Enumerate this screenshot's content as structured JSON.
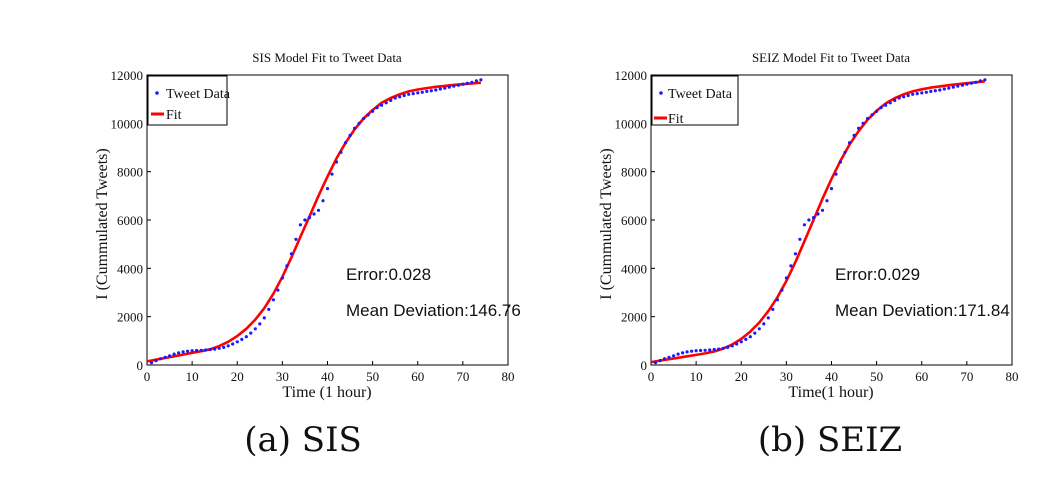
{
  "chart_data": [
    {
      "type": "scatter",
      "title": "SIS Model Fit to Tweet Data",
      "caption": "(a) SIS",
      "xlabel": "Time (1 hour)",
      "ylabel": "I (Cummulated Tweets)",
      "xlim": [
        0,
        80
      ],
      "ylim": [
        0,
        12000
      ],
      "xticks": [
        0,
        10,
        20,
        30,
        40,
        50,
        60,
        70,
        80
      ],
      "yticks": [
        0,
        2000,
        4000,
        6000,
        8000,
        10000,
        12000
      ],
      "grid": false,
      "legend": {
        "position": "top-left",
        "entries": [
          "Tweet Data",
          "Fit"
        ]
      },
      "annotations": [
        "Error:0.028",
        "Mean Deviation:146.76"
      ],
      "colors": {
        "data": "#1a1aff",
        "fit": "#ff0000"
      },
      "series": [
        {
          "name": "Tweet Data",
          "style": "points",
          "x": [
            1,
            2,
            3,
            4,
            5,
            6,
            7,
            8,
            9,
            10,
            11,
            12,
            13,
            14,
            15,
            16,
            17,
            18,
            19,
            20,
            21,
            22,
            23,
            24,
            25,
            26,
            27,
            28,
            29,
            30,
            31,
            32,
            33,
            34,
            35,
            36,
            37,
            38,
            39,
            40,
            41,
            42,
            43,
            44,
            45,
            46,
            47,
            48,
            49,
            50,
            51,
            52,
            53,
            54,
            55,
            56,
            57,
            58,
            59,
            60,
            61,
            62,
            63,
            64,
            65,
            66,
            67,
            68,
            69,
            70,
            71,
            72,
            73,
            74
          ],
          "y": [
            100,
            180,
            260,
            320,
            380,
            450,
            500,
            540,
            570,
            590,
            600,
            610,
            620,
            640,
            660,
            690,
            730,
            790,
            870,
            960,
            1060,
            1170,
            1320,
            1500,
            1700,
            1950,
            2300,
            2700,
            3100,
            3600,
            4100,
            4600,
            5200,
            5800,
            6000,
            6100,
            6250,
            6400,
            6800,
            7300,
            7900,
            8400,
            8800,
            9200,
            9500,
            9800,
            10000,
            10200,
            10350,
            10500,
            10650,
            10750,
            10850,
            10950,
            11050,
            11100,
            11150,
            11200,
            11230,
            11260,
            11290,
            11320,
            11350,
            11380,
            11420,
            11460,
            11500,
            11540,
            11580,
            11620,
            11660,
            11700,
            11760,
            11800
          ]
        },
        {
          "name": "Fit",
          "style": "line",
          "x": [
            0,
            2,
            4,
            6,
            8,
            10,
            12,
            14,
            16,
            18,
            20,
            22,
            24,
            26,
            28,
            30,
            32,
            34,
            36,
            38,
            40,
            42,
            44,
            46,
            48,
            50,
            52,
            54,
            56,
            58,
            60,
            62,
            64,
            66,
            68,
            70,
            72,
            74
          ],
          "y": [
            150,
            220,
            290,
            360,
            430,
            500,
            570,
            650,
            780,
            960,
            1200,
            1500,
            1880,
            2350,
            2950,
            3650,
            4450,
            5300,
            6150,
            7000,
            7800,
            8550,
            9200,
            9750,
            10200,
            10550,
            10850,
            11050,
            11200,
            11320,
            11400,
            11460,
            11510,
            11550,
            11590,
            11620,
            11650,
            11680
          ]
        }
      ]
    },
    {
      "type": "scatter",
      "title": "SEIZ Model Fit to Tweet Data",
      "caption": "(b) SEIZ",
      "xlabel": "Time(1 hour)",
      "ylabel": "I (Cummulated Tweets)",
      "xlim": [
        0,
        80
      ],
      "ylim": [
        0,
        12000
      ],
      "xticks": [
        0,
        10,
        20,
        30,
        40,
        50,
        60,
        70,
        80
      ],
      "yticks": [
        0,
        2000,
        4000,
        6000,
        8000,
        10000,
        12000
      ],
      "grid": false,
      "legend": {
        "position": "top-left",
        "entries": [
          "Tweet Data",
          "Fit"
        ]
      },
      "annotations": [
        "Error:0.029",
        "Mean Deviation:171.84"
      ],
      "colors": {
        "data": "#1a1aff",
        "fit": "#ff0000"
      },
      "series": [
        {
          "name": "Tweet Data",
          "style": "points",
          "x": [
            1,
            2,
            3,
            4,
            5,
            6,
            7,
            8,
            9,
            10,
            11,
            12,
            13,
            14,
            15,
            16,
            17,
            18,
            19,
            20,
            21,
            22,
            23,
            24,
            25,
            26,
            27,
            28,
            29,
            30,
            31,
            32,
            33,
            34,
            35,
            36,
            37,
            38,
            39,
            40,
            41,
            42,
            43,
            44,
            45,
            46,
            47,
            48,
            49,
            50,
            51,
            52,
            53,
            54,
            55,
            56,
            57,
            58,
            59,
            60,
            61,
            62,
            63,
            64,
            65,
            66,
            67,
            68,
            69,
            70,
            71,
            72,
            73,
            74
          ],
          "y": [
            100,
            180,
            260,
            320,
            380,
            450,
            500,
            540,
            570,
            590,
            600,
            610,
            620,
            640,
            660,
            690,
            730,
            790,
            870,
            960,
            1060,
            1170,
            1320,
            1500,
            1700,
            1950,
            2300,
            2700,
            3100,
            3600,
            4100,
            4600,
            5200,
            5800,
            6000,
            6100,
            6250,
            6400,
            6800,
            7300,
            7900,
            8400,
            8800,
            9200,
            9500,
            9800,
            10000,
            10200,
            10350,
            10500,
            10650,
            10750,
            10850,
            10950,
            11050,
            11100,
            11150,
            11200,
            11230,
            11260,
            11290,
            11320,
            11350,
            11380,
            11420,
            11460,
            11500,
            11540,
            11580,
            11620,
            11660,
            11700,
            11760,
            11800
          ]
        },
        {
          "name": "Fit",
          "style": "line",
          "x": [
            0,
            2,
            4,
            6,
            8,
            10,
            12,
            14,
            16,
            18,
            20,
            22,
            24,
            26,
            28,
            30,
            32,
            34,
            36,
            38,
            40,
            42,
            44,
            46,
            48,
            50,
            52,
            54,
            56,
            58,
            60,
            62,
            64,
            66,
            68,
            70,
            72,
            74
          ],
          "y": [
            120,
            180,
            240,
            300,
            360,
            420,
            480,
            560,
            680,
            850,
            1080,
            1380,
            1760,
            2230,
            2800,
            3480,
            4260,
            5120,
            6000,
            6880,
            7700,
            8450,
            9120,
            9680,
            10150,
            10520,
            10820,
            11040,
            11200,
            11320,
            11410,
            11480,
            11530,
            11580,
            11620,
            11660,
            11700,
            11740
          ]
        }
      ]
    }
  ]
}
